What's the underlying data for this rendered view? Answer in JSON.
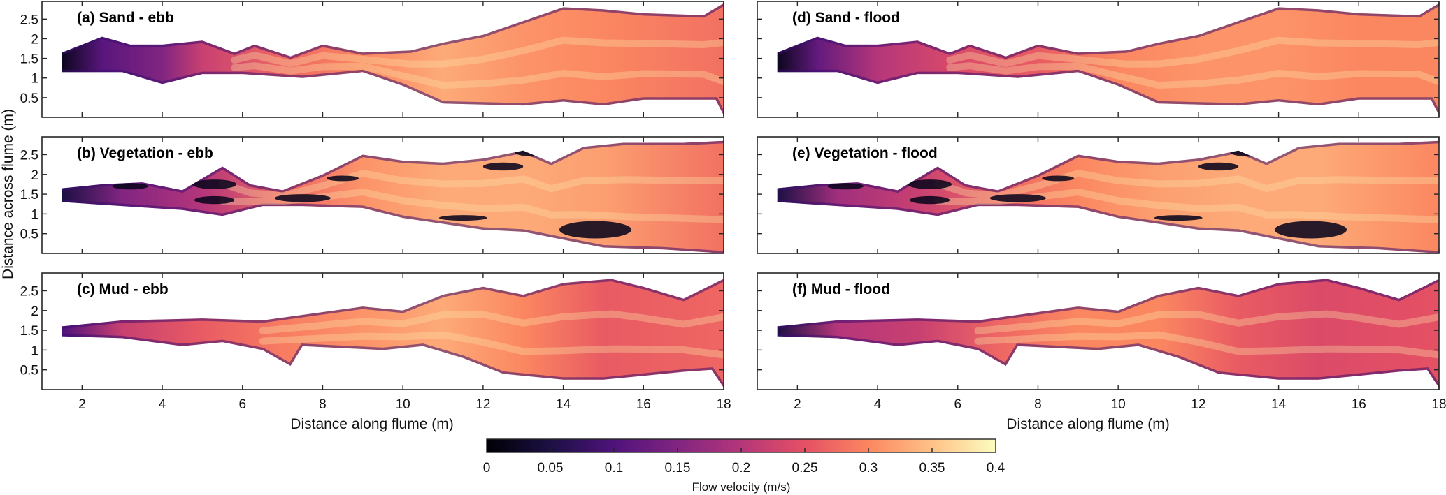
{
  "chart_data": {
    "type": "heatmap",
    "description": "Depth-averaged flow velocity maps in a flume for three bed types under ebb and flood conditions",
    "xlabel": "Distance along flume (m)",
    "ylabel": "Distance across flume (m)",
    "xlim": [
      1,
      18
    ],
    "ylim": [
      0,
      2.95
    ],
    "xticks": [
      2,
      4,
      6,
      8,
      10,
      12,
      14,
      16,
      18
    ],
    "xtick_labels": [
      "2",
      "4",
      "6",
      "8",
      "10",
      "12",
      "14",
      "16",
      "18"
    ],
    "yticks": [
      0.5,
      1,
      1.5,
      2,
      2.5
    ],
    "ytick_labels": [
      "0.5",
      "1",
      "1.5",
      "2",
      "2.5"
    ],
    "colorbar": {
      "label": "Flow velocity (m/s)",
      "colormap": "magma",
      "range": [
        0,
        0.4
      ],
      "ticks": [
        0,
        0.05,
        0.1,
        0.15,
        0.2,
        0.25,
        0.3,
        0.35,
        0.4
      ],
      "tick_labels": [
        "0",
        "0.05",
        "0.1",
        "0.15",
        "0.2",
        "0.25",
        "0.3",
        "0.35",
        "0.4"
      ],
      "placement": "bottom-center"
    },
    "panels": [
      {
        "id": "a",
        "title": "(a) Sand - ebb",
        "bed": "Sand",
        "tide": "ebb",
        "row": 0,
        "col": 0,
        "upper_bank": [
          [
            1.5,
            1.65
          ],
          [
            2.5,
            2.05
          ],
          [
            3.2,
            1.85
          ],
          [
            4,
            1.85
          ],
          [
            5,
            1.95
          ],
          [
            5.8,
            1.65
          ],
          [
            6.3,
            1.85
          ],
          [
            7.2,
            1.55
          ],
          [
            8,
            1.85
          ],
          [
            9,
            1.65
          ],
          [
            10.2,
            1.7
          ],
          [
            11,
            1.9
          ],
          [
            12,
            2.1
          ],
          [
            13,
            2.45
          ],
          [
            14,
            2.8
          ],
          [
            15,
            2.75
          ],
          [
            16,
            2.65
          ],
          [
            17.5,
            2.6
          ],
          [
            18,
            2.9
          ]
        ],
        "lower_bank": [
          [
            1.5,
            1.15
          ],
          [
            3,
            1.15
          ],
          [
            4,
            0.85
          ],
          [
            5,
            1.1
          ],
          [
            6,
            1.1
          ],
          [
            7.5,
            1.0
          ],
          [
            9,
            1.15
          ],
          [
            10,
            0.8
          ],
          [
            11,
            0.35
          ],
          [
            13,
            0.3
          ],
          [
            14,
            0.4
          ],
          [
            15,
            0.3
          ],
          [
            16,
            0.45
          ],
          [
            17.8,
            0.45
          ],
          [
            18,
            0.05
          ]
        ],
        "velocity_profile": [
          [
            1.5,
            0.02
          ],
          [
            2.5,
            0.11
          ],
          [
            4,
            0.15
          ],
          [
            5,
            0.22
          ],
          [
            7,
            0.27
          ],
          [
            9,
            0.3
          ],
          [
            11,
            0.33
          ],
          [
            13,
            0.31
          ],
          [
            15,
            0.3
          ],
          [
            18,
            0.28
          ]
        ],
        "low_velocity_patches": []
      },
      {
        "id": "b",
        "title": "(b) Vegetation - ebb",
        "bed": "Vegetation",
        "tide": "ebb",
        "row": 1,
        "col": 0,
        "upper_bank": [
          [
            1.5,
            1.65
          ],
          [
            2.5,
            1.75
          ],
          [
            3.5,
            1.8
          ],
          [
            4.5,
            1.6
          ],
          [
            5.5,
            2.2
          ],
          [
            6.2,
            1.75
          ],
          [
            7,
            1.6
          ],
          [
            8,
            2.0
          ],
          [
            9,
            2.5
          ],
          [
            10,
            2.35
          ],
          [
            11,
            2.3
          ],
          [
            12,
            2.4
          ],
          [
            13,
            2.6
          ],
          [
            13.7,
            2.3
          ],
          [
            14.5,
            2.7
          ],
          [
            15.5,
            2.8
          ],
          [
            17,
            2.8
          ],
          [
            18,
            2.85
          ]
        ],
        "lower_bank": [
          [
            1.5,
            1.3
          ],
          [
            3,
            1.2
          ],
          [
            4.5,
            1.1
          ],
          [
            5.5,
            0.95
          ],
          [
            6.5,
            1.2
          ],
          [
            7.5,
            1.2
          ],
          [
            9,
            1.15
          ],
          [
            10,
            0.9
          ],
          [
            11,
            0.75
          ],
          [
            12,
            0.6
          ],
          [
            13,
            0.55
          ],
          [
            14,
            0.35
          ],
          [
            15,
            0.15
          ],
          [
            16.5,
            0.1
          ],
          [
            18,
            0.0
          ]
        ],
        "velocity_profile": [
          [
            1.5,
            0.05
          ],
          [
            3,
            0.15
          ],
          [
            5,
            0.2
          ],
          [
            7,
            0.27
          ],
          [
            9,
            0.31
          ],
          [
            11,
            0.33
          ],
          [
            13,
            0.33
          ],
          [
            15,
            0.32
          ],
          [
            18,
            0.28
          ]
        ],
        "low_velocity_patches": [
          [
            3.2,
            1.7,
            0.45,
            0.08
          ],
          [
            5.3,
            1.75,
            0.55,
            0.12
          ],
          [
            5.3,
            1.35,
            0.5,
            0.1
          ],
          [
            7.5,
            1.4,
            0.7,
            0.1
          ],
          [
            8.5,
            1.9,
            0.4,
            0.07
          ],
          [
            12.5,
            2.2,
            0.5,
            0.1
          ],
          [
            13.3,
            2.55,
            0.5,
            0.1
          ],
          [
            14.8,
            0.6,
            0.9,
            0.22
          ],
          [
            11.5,
            0.9,
            0.6,
            0.07
          ]
        ]
      },
      {
        "id": "c",
        "title": "(c) Mud - ebb",
        "bed": "Mud",
        "tide": "ebb",
        "row": 2,
        "col": 0,
        "upper_bank": [
          [
            1.5,
            1.6
          ],
          [
            3,
            1.75
          ],
          [
            5,
            1.8
          ],
          [
            6.5,
            1.75
          ],
          [
            9,
            2.1
          ],
          [
            10,
            2.0
          ],
          [
            11,
            2.4
          ],
          [
            12,
            2.6
          ],
          [
            13,
            2.4
          ],
          [
            14,
            2.7
          ],
          [
            15.2,
            2.8
          ],
          [
            16,
            2.6
          ],
          [
            17,
            2.3
          ],
          [
            18,
            2.8
          ]
        ],
        "lower_bank": [
          [
            1.5,
            1.35
          ],
          [
            3,
            1.3
          ],
          [
            4.5,
            1.1
          ],
          [
            5.5,
            1.2
          ],
          [
            6.5,
            1.0
          ],
          [
            7.2,
            0.6
          ],
          [
            7.5,
            1.1
          ],
          [
            9.5,
            1.0
          ],
          [
            10.5,
            1.1
          ],
          [
            11.5,
            0.8
          ],
          [
            12.5,
            0.4
          ],
          [
            14,
            0.25
          ],
          [
            15,
            0.25
          ],
          [
            16,
            0.35
          ],
          [
            17,
            0.45
          ],
          [
            17.7,
            0.5
          ],
          [
            18,
            0.05
          ]
        ],
        "velocity_profile": [
          [
            1.5,
            0.1
          ],
          [
            3,
            0.22
          ],
          [
            5,
            0.26
          ],
          [
            7,
            0.29
          ],
          [
            9,
            0.31
          ],
          [
            11,
            0.33
          ],
          [
            13,
            0.3
          ],
          [
            15,
            0.26
          ],
          [
            18,
            0.27
          ]
        ],
        "low_velocity_patches": []
      },
      {
        "id": "d",
        "title": "(d) Sand - flood",
        "bed": "Sand",
        "tide": "flood",
        "row": 0,
        "col": 1,
        "upper_bank": [
          [
            1.5,
            1.65
          ],
          [
            2.5,
            2.05
          ],
          [
            3.2,
            1.85
          ],
          [
            4,
            1.85
          ],
          [
            5,
            1.95
          ],
          [
            5.8,
            1.65
          ],
          [
            6.3,
            1.85
          ],
          [
            7.2,
            1.55
          ],
          [
            8,
            1.85
          ],
          [
            9,
            1.65
          ],
          [
            10.2,
            1.7
          ],
          [
            11,
            1.9
          ],
          [
            12,
            2.1
          ],
          [
            13,
            2.45
          ],
          [
            14,
            2.8
          ],
          [
            15,
            2.75
          ],
          [
            16,
            2.65
          ],
          [
            17.5,
            2.6
          ],
          [
            18,
            2.9
          ]
        ],
        "lower_bank": [
          [
            1.5,
            1.15
          ],
          [
            3,
            1.15
          ],
          [
            4,
            0.85
          ],
          [
            5,
            1.1
          ],
          [
            6,
            1.1
          ],
          [
            7.5,
            1.0
          ],
          [
            9,
            1.15
          ],
          [
            10,
            0.8
          ],
          [
            11,
            0.35
          ],
          [
            13,
            0.3
          ],
          [
            14,
            0.4
          ],
          [
            15,
            0.3
          ],
          [
            16,
            0.45
          ],
          [
            17.8,
            0.45
          ],
          [
            18,
            0.05
          ]
        ],
        "velocity_profile": [
          [
            1.5,
            0.02
          ],
          [
            2.5,
            0.12
          ],
          [
            4,
            0.2
          ],
          [
            6,
            0.24
          ],
          [
            8,
            0.26
          ],
          [
            10,
            0.3
          ],
          [
            12,
            0.31
          ],
          [
            14,
            0.31
          ],
          [
            16,
            0.3
          ],
          [
            18,
            0.3
          ]
        ],
        "low_velocity_patches": []
      },
      {
        "id": "e",
        "title": "(e) Vegetation - flood",
        "bed": "Vegetation",
        "tide": "flood",
        "row": 1,
        "col": 1,
        "upper_bank": [
          [
            1.5,
            1.65
          ],
          [
            2.5,
            1.75
          ],
          [
            3.5,
            1.8
          ],
          [
            4.5,
            1.6
          ],
          [
            5.5,
            2.2
          ],
          [
            6.2,
            1.75
          ],
          [
            7,
            1.6
          ],
          [
            8,
            2.0
          ],
          [
            9,
            2.5
          ],
          [
            10,
            2.35
          ],
          [
            11,
            2.3
          ],
          [
            12,
            2.4
          ],
          [
            13,
            2.6
          ],
          [
            13.7,
            2.3
          ],
          [
            14.5,
            2.7
          ],
          [
            15.5,
            2.8
          ],
          [
            17,
            2.8
          ],
          [
            18,
            2.85
          ]
        ],
        "lower_bank": [
          [
            1.5,
            1.3
          ],
          [
            3,
            1.2
          ],
          [
            4.5,
            1.1
          ],
          [
            5.5,
            0.95
          ],
          [
            6.5,
            1.2
          ],
          [
            7.5,
            1.2
          ],
          [
            9,
            1.15
          ],
          [
            10,
            0.9
          ],
          [
            11,
            0.75
          ],
          [
            12,
            0.6
          ],
          [
            13,
            0.55
          ],
          [
            14,
            0.35
          ],
          [
            15,
            0.15
          ],
          [
            16.5,
            0.1
          ],
          [
            18,
            0.0
          ]
        ],
        "velocity_profile": [
          [
            1.5,
            0.05
          ],
          [
            3,
            0.18
          ],
          [
            5,
            0.22
          ],
          [
            7,
            0.27
          ],
          [
            9,
            0.3
          ],
          [
            11,
            0.32
          ],
          [
            13,
            0.33
          ],
          [
            15,
            0.33
          ],
          [
            18,
            0.3
          ]
        ],
        "low_velocity_patches": [
          [
            3.2,
            1.7,
            0.45,
            0.08
          ],
          [
            5.3,
            1.75,
            0.55,
            0.12
          ],
          [
            5.3,
            1.35,
            0.5,
            0.1
          ],
          [
            7.5,
            1.4,
            0.7,
            0.1
          ],
          [
            8.5,
            1.9,
            0.4,
            0.07
          ],
          [
            12.5,
            2.2,
            0.5,
            0.1
          ],
          [
            13.3,
            2.55,
            0.5,
            0.1
          ],
          [
            14.8,
            0.6,
            0.9,
            0.22
          ],
          [
            11.5,
            0.9,
            0.6,
            0.07
          ]
        ]
      },
      {
        "id": "f",
        "title": "(f) Mud - flood",
        "bed": "Mud",
        "tide": "flood",
        "row": 2,
        "col": 1,
        "upper_bank": [
          [
            1.5,
            1.6
          ],
          [
            3,
            1.75
          ],
          [
            5,
            1.8
          ],
          [
            6.5,
            1.75
          ],
          [
            9,
            2.1
          ],
          [
            10,
            2.0
          ],
          [
            11,
            2.4
          ],
          [
            12,
            2.6
          ],
          [
            13,
            2.4
          ],
          [
            14,
            2.7
          ],
          [
            15.2,
            2.8
          ],
          [
            16,
            2.6
          ],
          [
            17,
            2.3
          ],
          [
            18,
            2.8
          ]
        ],
        "lower_bank": [
          [
            1.5,
            1.35
          ],
          [
            3,
            1.3
          ],
          [
            4.5,
            1.1
          ],
          [
            5.5,
            1.2
          ],
          [
            6.5,
            1.0
          ],
          [
            7.2,
            0.6
          ],
          [
            7.5,
            1.1
          ],
          [
            9.5,
            1.0
          ],
          [
            10.5,
            1.1
          ],
          [
            11.5,
            0.8
          ],
          [
            12.5,
            0.4
          ],
          [
            14,
            0.25
          ],
          [
            15,
            0.25
          ],
          [
            16,
            0.35
          ],
          [
            17,
            0.45
          ],
          [
            17.7,
            0.5
          ],
          [
            18,
            0.05
          ]
        ],
        "velocity_profile": [
          [
            1.5,
            0.05
          ],
          [
            3,
            0.2
          ],
          [
            5,
            0.22
          ],
          [
            7,
            0.27
          ],
          [
            9,
            0.3
          ],
          [
            11,
            0.3
          ],
          [
            13,
            0.26
          ],
          [
            15,
            0.24
          ],
          [
            18,
            0.25
          ]
        ],
        "low_velocity_patches": []
      }
    ]
  },
  "magma_stops": [
    [
      0.0,
      "#000004"
    ],
    [
      0.125,
      "#1c1044"
    ],
    [
      0.25,
      "#4f127b"
    ],
    [
      0.375,
      "#812581"
    ],
    [
      0.5,
      "#b5367a"
    ],
    [
      0.625,
      "#e55064"
    ],
    [
      0.75,
      "#fb8761"
    ],
    [
      0.875,
      "#fec287"
    ],
    [
      1.0,
      "#fcfdbf"
    ]
  ]
}
